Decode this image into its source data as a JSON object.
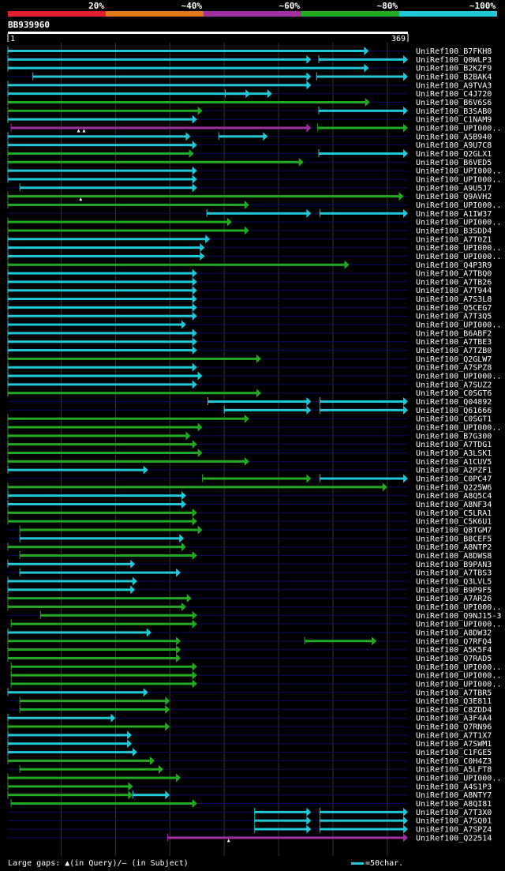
{
  "title": "BB939960",
  "colors": {
    "background": "#000000",
    "row_line": "#0a0a66",
    "grid": "#333333",
    "cyan": "#20c8d8",
    "green": "#22aa22",
    "purple": "#a030a0",
    "orange": "#e07818",
    "red": "#e01e2e",
    "ruler": "#ffffff"
  },
  "legend": {
    "gaps_text": "Large gaps: ▲(in Query)/– (in Subject)",
    "scale_text": "=50char."
  },
  "chart_data": {
    "type": "alignment-hits",
    "query_length": 369,
    "ruler_start_label": "1",
    "ruler_end_label": "369",
    "identity_scale": [
      {
        "label": "20%",
        "color": "red"
      },
      {
        "label": "~40%",
        "color": "orange"
      },
      {
        "label": "~60%",
        "color": "purple"
      },
      {
        "label": "~80%",
        "color": "green"
      },
      {
        "label": "~100%",
        "color": "cyan"
      }
    ],
    "grid_positions": [
      50,
      100,
      150,
      200,
      250,
      300,
      350
    ],
    "hits": [
      {
        "name": "UniRef100_B7FKH8",
        "segs": [
          [
            1,
            333,
            "cyan"
          ]
        ]
      },
      {
        "name": "UniRef100_Q0WLP3",
        "segs": [
          [
            1,
            280,
            "cyan"
          ],
          [
            287,
            369,
            "cyan"
          ]
        ]
      },
      {
        "name": "UniRef100_B2KZF9",
        "segs": [
          [
            1,
            333,
            "cyan"
          ]
        ]
      },
      {
        "name": "UniRef100_B2BAK4",
        "segs": [
          [
            24,
            280,
            "cyan"
          ],
          [
            285,
            369,
            "cyan"
          ]
        ]
      },
      {
        "name": "UniRef100_A9TVA3",
        "segs": [
          [
            1,
            280,
            "cyan"
          ]
        ]
      },
      {
        "name": "UniRef100_C4J720",
        "segs": [
          [
            1,
            224,
            "cyan"
          ],
          [
            201,
            244,
            "cyan"
          ]
        ]
      },
      {
        "name": "UniRef100_B6V6S6",
        "segs": [
          [
            1,
            334,
            "green"
          ]
        ]
      },
      {
        "name": "UniRef100_B3SAB0",
        "segs": [
          [
            1,
            180,
            "green"
          ],
          [
            287,
            369,
            "cyan"
          ]
        ]
      },
      {
        "name": "UniRef100_C1NAM9",
        "segs": [
          [
            1,
            175,
            "cyan"
          ]
        ]
      },
      {
        "name": "UniRef100_UPI000..",
        "segs": [
          [
            4,
            280,
            "purple"
          ],
          [
            286,
            369,
            "green"
          ]
        ],
        "gaps": [
          66,
          71
        ]
      },
      {
        "name": "UniRef100_A5B940",
        "segs": [
          [
            1,
            169,
            "cyan"
          ],
          [
            195,
            240,
            "cyan"
          ]
        ]
      },
      {
        "name": "UniRef100_A9U7C8",
        "segs": [
          [
            1,
            175,
            "cyan"
          ]
        ]
      },
      {
        "name": "UniRef100_Q2GLX1",
        "segs": [
          [
            1,
            172,
            "green"
          ],
          [
            287,
            369,
            "cyan"
          ]
        ]
      },
      {
        "name": "UniRef100_B6VED5",
        "segs": [
          [
            1,
            273,
            "green"
          ]
        ]
      },
      {
        "name": "UniRef100_UPI000..",
        "segs": [
          [
            1,
            175,
            "cyan"
          ]
        ]
      },
      {
        "name": "UniRef100_UPI000..",
        "segs": [
          [
            1,
            175,
            "cyan"
          ]
        ]
      },
      {
        "name": "UniRef100_A9U5J7",
        "segs": [
          [
            12,
            175,
            "cyan"
          ]
        ]
      },
      {
        "name": "UniRef100_Q9AVH2",
        "segs": [
          [
            1,
            365,
            "green"
          ]
        ],
        "gaps": [
          68
        ]
      },
      {
        "name": "UniRef100_UPI000..",
        "segs": [
          [
            1,
            223,
            "green"
          ]
        ]
      },
      {
        "name": "UniRef100_A1IW37",
        "segs": [
          [
            184,
            280,
            "cyan"
          ],
          [
            288,
            369,
            "cyan"
          ]
        ]
      },
      {
        "name": "UniRef100_UPI000..",
        "segs": [
          [
            1,
            207,
            "green"
          ]
        ]
      },
      {
        "name": "UniRef100_B3SDD4",
        "segs": [
          [
            1,
            223,
            "green"
          ]
        ]
      },
      {
        "name": "UniRef100_A7T0Z1",
        "segs": [
          [
            1,
            187,
            "cyan"
          ]
        ]
      },
      {
        "name": "UniRef100_UPI000..",
        "segs": [
          [
            1,
            182,
            "cyan"
          ]
        ]
      },
      {
        "name": "UniRef100_UPI000..",
        "segs": [
          [
            1,
            182,
            "cyan"
          ]
        ]
      },
      {
        "name": "UniRef100_Q4P3R9",
        "segs": [
          [
            1,
            315,
            "green"
          ]
        ]
      },
      {
        "name": "UniRef100_A7TBQ0",
        "segs": [
          [
            1,
            175,
            "cyan"
          ]
        ]
      },
      {
        "name": "UniRef100_A7TB26",
        "segs": [
          [
            1,
            175,
            "cyan"
          ]
        ]
      },
      {
        "name": "UniRef100_A7T944",
        "segs": [
          [
            1,
            175,
            "cyan"
          ]
        ]
      },
      {
        "name": "UniRef100_A7S3L8",
        "segs": [
          [
            1,
            175,
            "cyan"
          ]
        ]
      },
      {
        "name": "UniRef100_Q5CEG7",
        "segs": [
          [
            1,
            175,
            "cyan"
          ]
        ]
      },
      {
        "name": "UniRef100_A7T3Q5",
        "segs": [
          [
            1,
            175,
            "cyan"
          ]
        ]
      },
      {
        "name": "UniRef100_UPI000..",
        "segs": [
          [
            1,
            165,
            "cyan"
          ]
        ]
      },
      {
        "name": "UniRef100_B6ABF2",
        "segs": [
          [
            1,
            175,
            "cyan"
          ]
        ]
      },
      {
        "name": "UniRef100_A7TBE3",
        "segs": [
          [
            1,
            175,
            "cyan"
          ]
        ]
      },
      {
        "name": "UniRef100_A7TZB0",
        "segs": [
          [
            1,
            175,
            "cyan"
          ]
        ]
      },
      {
        "name": "UniRef100_Q2GLW7",
        "segs": [
          [
            1,
            234,
            "green"
          ]
        ]
      },
      {
        "name": "UniRef100_A7SPZ8",
        "segs": [
          [
            1,
            175,
            "cyan"
          ]
        ]
      },
      {
        "name": "UniRef100_UPI000..",
        "segs": [
          [
            1,
            180,
            "cyan"
          ]
        ]
      },
      {
        "name": "UniRef100_A7SUZ2",
        "segs": [
          [
            1,
            175,
            "cyan"
          ]
        ]
      },
      {
        "name": "UniRef100_C0SGT6",
        "segs": [
          [
            1,
            234,
            "green"
          ]
        ]
      },
      {
        "name": "UniRef100_Q04892",
        "segs": [
          [
            185,
            280,
            "cyan"
          ],
          [
            288,
            369,
            "cyan"
          ]
        ]
      },
      {
        "name": "UniRef100_Q61666",
        "segs": [
          [
            200,
            280,
            "cyan"
          ],
          [
            288,
            369,
            "cyan"
          ]
        ]
      },
      {
        "name": "UniRef100_C0SGT1",
        "segs": [
          [
            1,
            223,
            "green"
          ]
        ]
      },
      {
        "name": "UniRef100_UPI000..",
        "segs": [
          [
            1,
            180,
            "green"
          ]
        ]
      },
      {
        "name": "UniRef100_B7G300",
        "segs": [
          [
            1,
            169,
            "green"
          ]
        ]
      },
      {
        "name": "UniRef100_A7TDG1",
        "segs": [
          [
            1,
            175,
            "green"
          ]
        ]
      },
      {
        "name": "UniRef100_A3LSK1",
        "segs": [
          [
            1,
            180,
            "green"
          ]
        ]
      },
      {
        "name": "UniRef100_A1CUV5",
        "segs": [
          [
            1,
            223,
            "green"
          ]
        ]
      },
      {
        "name": "UniRef100_A2PZF1",
        "segs": [
          [
            1,
            130,
            "cyan"
          ]
        ]
      },
      {
        "name": "UniRef100_C0PC47",
        "segs": [
          [
            180,
            280,
            "green"
          ],
          [
            288,
            369,
            "cyan"
          ]
        ]
      },
      {
        "name": "UniRef100_Q225W6",
        "segs": [
          [
            1,
            350,
            "green"
          ]
        ]
      },
      {
        "name": "UniRef100_A8Q5C4",
        "segs": [
          [
            1,
            165,
            "cyan"
          ]
        ]
      },
      {
        "name": "UniRef100_A8NF34",
        "segs": [
          [
            1,
            165,
            "cyan"
          ]
        ]
      },
      {
        "name": "UniRef100_C5LRA1",
        "segs": [
          [
            1,
            175,
            "green"
          ]
        ]
      },
      {
        "name": "UniRef100_C5K6U1",
        "segs": [
          [
            1,
            175,
            "green"
          ]
        ]
      },
      {
        "name": "UniRef100_Q8TGM7",
        "segs": [
          [
            12,
            180,
            "green"
          ]
        ]
      },
      {
        "name": "UniRef100_B8CEF5",
        "segs": [
          [
            12,
            163,
            "cyan"
          ]
        ]
      },
      {
        "name": "UniRef100_A8NTP2",
        "segs": [
          [
            1,
            165,
            "green"
          ]
        ]
      },
      {
        "name": "UniRef100_A8DWS8",
        "segs": [
          [
            12,
            175,
            "green"
          ]
        ]
      },
      {
        "name": "UniRef100_B9PAN3",
        "segs": [
          [
            1,
            118,
            "cyan"
          ]
        ]
      },
      {
        "name": "UniRef100_A7TBS3",
        "segs": [
          [
            12,
            160,
            "cyan"
          ]
        ]
      },
      {
        "name": "UniRef100_Q3LVL5",
        "segs": [
          [
            1,
            120,
            "cyan"
          ]
        ]
      },
      {
        "name": "UniRef100_B9P9F5",
        "segs": [
          [
            1,
            118,
            "cyan"
          ]
        ]
      },
      {
        "name": "UniRef100_A7AR26",
        "segs": [
          [
            1,
            170,
            "green"
          ]
        ]
      },
      {
        "name": "UniRef100_UPI000..",
        "segs": [
          [
            1,
            165,
            "green"
          ]
        ]
      },
      {
        "name": "UniRef100_Q9NJ15-3",
        "segs": [
          [
            31,
            175,
            "green"
          ]
        ]
      },
      {
        "name": "UniRef100_UPI000..",
        "segs": [
          [
            4,
            175,
            "green"
          ]
        ]
      },
      {
        "name": "UniRef100_A8DW32",
        "segs": [
          [
            1,
            133,
            "cyan"
          ]
        ]
      },
      {
        "name": "UniRef100_Q7RFQ4",
        "segs": [
          [
            1,
            160,
            "green"
          ],
          [
            274,
            340,
            "green"
          ]
        ]
      },
      {
        "name": "UniRef100_A5K5F4",
        "segs": [
          [
            1,
            160,
            "green"
          ]
        ]
      },
      {
        "name": "UniRef100_Q7RAD5",
        "segs": [
          [
            1,
            160,
            "green"
          ]
        ]
      },
      {
        "name": "UniRef100_UPI000..",
        "segs": [
          [
            4,
            175,
            "green"
          ]
        ]
      },
      {
        "name": "UniRef100_UPI000..",
        "segs": [
          [
            4,
            175,
            "green"
          ]
        ]
      },
      {
        "name": "UniRef100_UPI000..",
        "segs": [
          [
            4,
            175,
            "green"
          ]
        ]
      },
      {
        "name": "UniRef100_A7TBR5",
        "segs": [
          [
            1,
            130,
            "cyan"
          ]
        ]
      },
      {
        "name": "UniRef100_Q3E811",
        "segs": [
          [
            12,
            150,
            "green"
          ]
        ]
      },
      {
        "name": "UniRef100_C8ZDD4",
        "segs": [
          [
            12,
            150,
            "green"
          ]
        ]
      },
      {
        "name": "UniRef100_A3F4A4",
        "segs": [
          [
            1,
            100,
            "cyan"
          ]
        ]
      },
      {
        "name": "UniRef100_Q7RN96",
        "segs": [
          [
            1,
            150,
            "green"
          ]
        ]
      },
      {
        "name": "UniRef100_A7T1X7",
        "segs": [
          [
            1,
            115,
            "cyan"
          ]
        ]
      },
      {
        "name": "UniRef100_A7SWM1",
        "segs": [
          [
            1,
            115,
            "cyan"
          ]
        ]
      },
      {
        "name": "UniRef100_C1FGE5",
        "segs": [
          [
            1,
            120,
            "cyan"
          ]
        ]
      },
      {
        "name": "UniRef100_C0H4Z3",
        "segs": [
          [
            1,
            136,
            "green"
          ]
        ]
      },
      {
        "name": "UniRef100_A5LFT8",
        "segs": [
          [
            12,
            144,
            "green"
          ]
        ]
      },
      {
        "name": "UniRef100_UPI000..",
        "segs": [
          [
            1,
            160,
            "green"
          ]
        ]
      },
      {
        "name": "UniRef100_A4S1P3",
        "segs": [
          [
            1,
            116,
            "green"
          ]
        ]
      },
      {
        "name": "UniRef100_A8NTY7",
        "segs": [
          [
            1,
            116,
            "green"
          ],
          [
            116,
            150,
            "cyan"
          ]
        ]
      },
      {
        "name": "UniRef100_A8QI81",
        "segs": [
          [
            4,
            175,
            "green"
          ]
        ]
      },
      {
        "name": "UniRef100_A7T3X0",
        "segs": [
          [
            228,
            280,
            "cyan"
          ],
          [
            288,
            369,
            "cyan"
          ]
        ]
      },
      {
        "name": "UniRef100_A7SQ01",
        "segs": [
          [
            228,
            280,
            "cyan"
          ],
          [
            288,
            369,
            "cyan"
          ]
        ]
      },
      {
        "name": "UniRef100_A7SPZ4",
        "segs": [
          [
            228,
            280,
            "cyan"
          ],
          [
            288,
            369,
            "cyan"
          ]
        ]
      },
      {
        "name": "UniRef100_Q22514",
        "segs": [
          [
            148,
            369,
            "purple"
          ]
        ],
        "gaps": [
          204
        ]
      }
    ]
  }
}
